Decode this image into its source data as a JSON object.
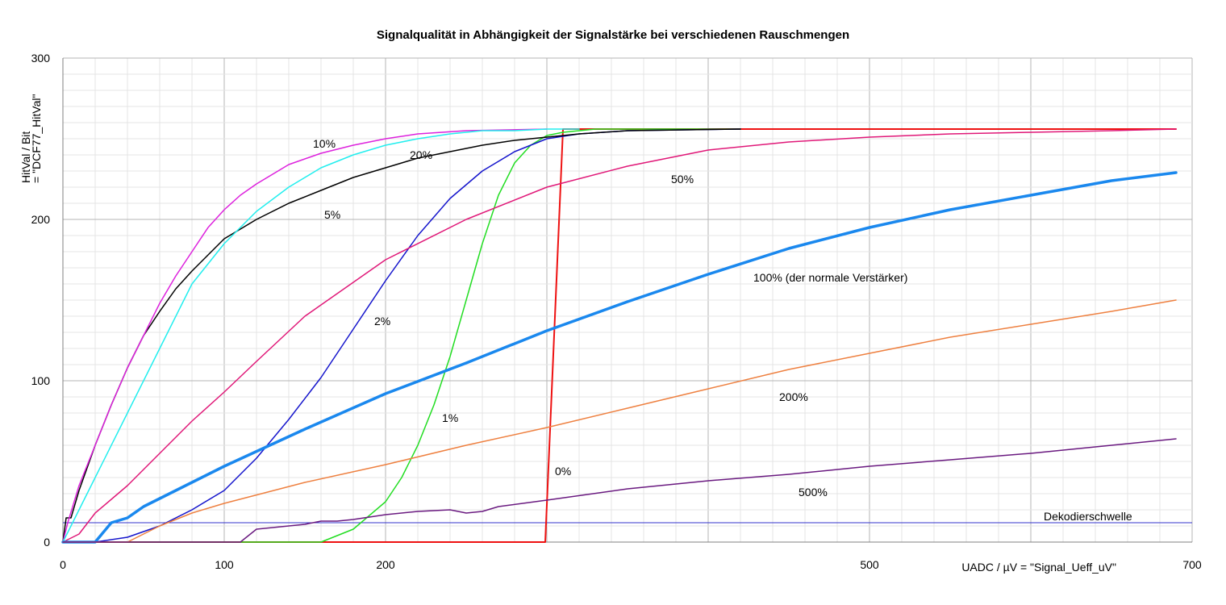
{
  "chart_data": {
    "type": "line",
    "title": "Signalqualität in Abhängigkeit der Signalstärke bei verschiedenen Rauschmengen",
    "xlabel": "UADC / µV  = \"Signal_Ueff_uV\"",
    "ylabel_line1": "HitVal / Bit",
    "ylabel_line2": "= \"DCF77_HitVal\"",
    "xlim": [
      0,
      700
    ],
    "ylim": [
      0,
      300
    ],
    "x_tick_labels": [
      {
        "x": 0,
        "label": "0"
      },
      {
        "x": 100,
        "label": "100"
      },
      {
        "x": 200,
        "label": "200"
      },
      {
        "x": 500,
        "label": "500"
      },
      {
        "x": 700,
        "label": "700"
      }
    ],
    "y_tick_labels": [
      {
        "y": 0,
        "label": "0"
      },
      {
        "y": 100,
        "label": "100"
      },
      {
        "y": 200,
        "label": "200"
      },
      {
        "y": 300,
        "label": "300"
      }
    ],
    "grid": true,
    "threshold": {
      "value": 12,
      "label": "Dekodierschwelle",
      "color": "#3333cc"
    },
    "series": [
      {
        "name": "0%",
        "color": "#ee1111",
        "width": 2,
        "x": [
          0,
          299,
          310,
          690
        ],
        "y": [
          0,
          0,
          256,
          256
        ]
      },
      {
        "name": "1%",
        "color": "#22dd22",
        "width": 1.5,
        "x": [
          0,
          160,
          180,
          200,
          210,
          220,
          230,
          240,
          250,
          260,
          270,
          280,
          290,
          300,
          310,
          330,
          360,
          420
        ],
        "y": [
          0,
          0,
          8,
          25,
          40,
          60,
          85,
          115,
          150,
          185,
          215,
          235,
          246,
          252,
          254,
          256,
          256,
          256
        ]
      },
      {
        "name": "2%",
        "color": "#1515cc",
        "width": 1.5,
        "x": [
          0,
          20,
          40,
          60,
          80,
          100,
          120,
          140,
          160,
          180,
          200,
          220,
          240,
          260,
          280,
          300,
          320,
          350,
          420
        ],
        "y": [
          0,
          0,
          3,
          10,
          20,
          32,
          52,
          76,
          102,
          132,
          162,
          190,
          213,
          230,
          242,
          250,
          253,
          255,
          256
        ]
      },
      {
        "name": "5%",
        "color": "#000000",
        "width": 1.5,
        "x": [
          0,
          2,
          5,
          10,
          20,
          30,
          40,
          50,
          60,
          70,
          80,
          90,
          100,
          120,
          140,
          160,
          180,
          200,
          220,
          240,
          260,
          280,
          300,
          320,
          350,
          420
        ],
        "y": [
          0,
          15,
          15,
          32,
          60,
          85,
          108,
          128,
          143,
          157,
          168,
          178,
          188,
          200,
          210,
          218,
          226,
          232,
          238,
          242,
          246,
          249,
          251,
          253,
          255,
          256
        ]
      },
      {
        "name": "10%",
        "color": "#dd22dd",
        "width": 1.5,
        "x": [
          0,
          3,
          10,
          20,
          30,
          40,
          50,
          60,
          70,
          80,
          90,
          100,
          110,
          120,
          140,
          160,
          180,
          200,
          220,
          250,
          300
        ],
        "y": [
          0,
          12,
          35,
          60,
          85,
          108,
          128,
          148,
          165,
          180,
          195,
          206,
          215,
          222,
          234,
          241,
          246,
          250,
          253,
          255,
          256
        ]
      },
      {
        "name": "20%",
        "color": "#22eeee",
        "width": 1.5,
        "x": [
          0,
          5,
          10,
          20,
          40,
          60,
          80,
          100,
          120,
          140,
          160,
          180,
          200,
          220,
          240,
          260,
          280,
          300,
          320
        ],
        "y": [
          0,
          10,
          20,
          40,
          80,
          120,
          160,
          185,
          205,
          220,
          232,
          240,
          246,
          250,
          253,
          255,
          255,
          256,
          256
        ]
      },
      {
        "name": "50%",
        "color": "#e01878",
        "width": 1.5,
        "x": [
          0,
          10,
          20,
          40,
          60,
          80,
          100,
          120,
          150,
          200,
          250,
          300,
          350,
          400,
          450,
          500,
          550,
          600,
          650,
          690
        ],
        "y": [
          0,
          5,
          18,
          35,
          55,
          75,
          93,
          112,
          140,
          175,
          200,
          220,
          233,
          243,
          248,
          251,
          253,
          254,
          255,
          256
        ]
      },
      {
        "name": "100%  (der normale Verstärker)",
        "color": "#1a88ee",
        "width": 3.5,
        "x": [
          0,
          20,
          30,
          40,
          50,
          60,
          80,
          100,
          150,
          200,
          250,
          300,
          350,
          400,
          450,
          500,
          550,
          600,
          650,
          690
        ],
        "y": [
          0,
          0,
          12,
          15,
          22,
          27,
          37,
          47,
          70,
          92,
          111,
          131,
          149,
          166,
          182,
          195,
          206,
          215,
          224,
          229
        ]
      },
      {
        "name": "200%",
        "color": "#ee8040",
        "width": 1.5,
        "x": [
          0,
          40,
          50,
          60,
          80,
          100,
          150,
          200,
          250,
          300,
          350,
          400,
          450,
          500,
          550,
          600,
          650,
          690
        ],
        "y": [
          0,
          0,
          5,
          10,
          18,
          24,
          37,
          48,
          60,
          71,
          83,
          95,
          107,
          117,
          127,
          135,
          143,
          150
        ]
      },
      {
        "name": "500%",
        "color": "#6a1a80",
        "width": 1.5,
        "x": [
          0,
          110,
          120,
          130,
          140,
          150,
          160,
          170,
          180,
          200,
          220,
          240,
          250,
          260,
          270,
          300,
          350,
          400,
          450,
          500,
          550,
          600,
          650,
          690
        ],
        "y": [
          0,
          0,
          8,
          9,
          10,
          11,
          13,
          13,
          14,
          17,
          19,
          20,
          18,
          19,
          22,
          26,
          33,
          38,
          42,
          47,
          51,
          55,
          60,
          64
        ]
      }
    ],
    "annotations": [
      {
        "text": "10%",
        "x": 155,
        "y": 247
      },
      {
        "text": "20%",
        "x": 215,
        "y": 240
      },
      {
        "text": "5%",
        "x": 162,
        "y": 203
      },
      {
        "text": "50%",
        "x": 377,
        "y": 225
      },
      {
        "text": "100%  (der normale Verstärker)",
        "x": 428,
        "y": 164
      },
      {
        "text": "2%",
        "x": 193,
        "y": 137
      },
      {
        "text": "1%",
        "x": 235,
        "y": 77
      },
      {
        "text": "200%",
        "x": 444,
        "y": 90
      },
      {
        "text": "0%",
        "x": 305,
        "y": 44
      },
      {
        "text": "500%",
        "x": 456,
        "y": 31
      },
      {
        "text": "Dekodierschwelle",
        "x": 608,
        "y": 16
      }
    ]
  }
}
